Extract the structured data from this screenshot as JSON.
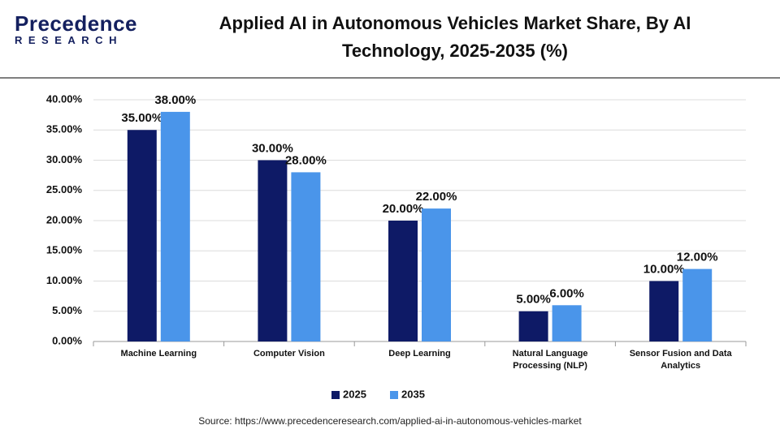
{
  "logo": {
    "name": "Precedence",
    "sub": "RESEARCH"
  },
  "source": "Source: https://www.precedenceresearch.com/applied-ai-in-autonomous-vehicles-market",
  "chart_data": {
    "type": "bar",
    "title": "Applied AI in Autonomous Vehicles Market Share, By AI Technology, 2025-2035 (%)",
    "categories": [
      "Machine Learning",
      "Computer Vision",
      "Deep Learning",
      "Natural Language Processing (NLP)",
      "Sensor Fusion and Data Analytics"
    ],
    "series": [
      {
        "name": "2025",
        "color": "#0e1a66",
        "values": [
          35,
          30,
          20,
          5,
          10
        ],
        "value_labels": [
          "35.00%",
          "30.00%",
          "20.00%",
          "5.00%",
          "10.00%"
        ]
      },
      {
        "name": "2035",
        "color": "#4a95ea",
        "values": [
          38,
          28,
          22,
          6,
          12
        ],
        "value_labels": [
          "38.00%",
          "28.00%",
          "22.00%",
          "6.00%",
          "12.00%"
        ]
      }
    ],
    "ylim": [
      0,
      40
    ],
    "yticks": [
      {
        "value": 0,
        "label": "0.00%"
      },
      {
        "value": 5,
        "label": "5.00%"
      },
      {
        "value": 10,
        "label": "10.00%"
      },
      {
        "value": 15,
        "label": "15.00%"
      },
      {
        "value": 20,
        "label": "20.00%"
      },
      {
        "value": 25,
        "label": "25.00%"
      },
      {
        "value": 30,
        "label": "30.00%"
      },
      {
        "value": 35,
        "label": "35.00%"
      },
      {
        "value": 40,
        "label": "40.00%"
      }
    ],
    "grid": true,
    "legend": "bottom"
  }
}
